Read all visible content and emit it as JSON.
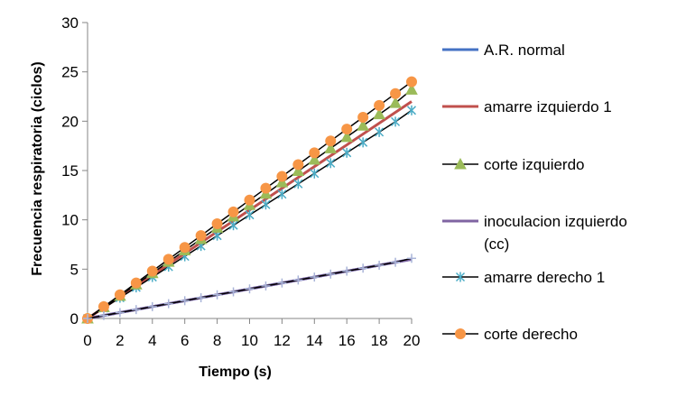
{
  "chart_data": {
    "type": "line",
    "xlabel": "Tiempo (s)",
    "ylabel": "Frecuencia respiratoria  (ciclos)",
    "xlim": [
      0,
      20
    ],
    "ylim": [
      0,
      30
    ],
    "xticks": [
      0,
      2,
      4,
      6,
      8,
      10,
      12,
      14,
      16,
      18,
      20
    ],
    "yticks": [
      0,
      5,
      10,
      15,
      20,
      25,
      30
    ],
    "grid": false,
    "legend_position": "right",
    "series": [
      {
        "name": "A.R. normal",
        "color": "#4472C4",
        "marker": "none",
        "x": [
          0,
          20
        ],
        "y": [
          0,
          6
        ]
      },
      {
        "name": "amarre izquierdo 1",
        "color": "#C0504D",
        "marker": "none",
        "x": [
          0,
          20
        ],
        "y": [
          0,
          22
        ]
      },
      {
        "name": "corte izquierdo",
        "color": "#000000",
        "marker": "triangle",
        "marker_color": "#9BBB59",
        "x": [
          0,
          1,
          2,
          3,
          4,
          5,
          6,
          7,
          8,
          9,
          10,
          11,
          12,
          13,
          14,
          15,
          16,
          17,
          18,
          19,
          20
        ],
        "y": [
          0,
          1.15,
          2.3,
          3.45,
          4.6,
          5.75,
          6.9,
          8.05,
          9.2,
          10.35,
          11.5,
          12.65,
          13.8,
          14.95,
          16.1,
          17.25,
          18.4,
          19.55,
          20.7,
          21.85,
          23.2
        ]
      },
      {
        "name": "inoculacion izquierdo (cc)",
        "color": "#8064A2",
        "marker": "none",
        "x": [
          0,
          20
        ],
        "y": [
          0,
          6
        ]
      },
      {
        "name": "amarre derecho 1",
        "color": "#000000",
        "marker": "star",
        "marker_color": "#4BACC6",
        "x": [
          0,
          1,
          2,
          3,
          4,
          5,
          6,
          7,
          8,
          9,
          10,
          11,
          12,
          13,
          14,
          15,
          16,
          17,
          18,
          19,
          20
        ],
        "y": [
          0,
          1.05,
          2.1,
          3.15,
          4.2,
          5.25,
          6.3,
          7.35,
          8.4,
          9.45,
          10.5,
          11.55,
          12.6,
          13.65,
          14.7,
          15.75,
          16.8,
          17.85,
          18.9,
          19.95,
          21.1
        ]
      },
      {
        "name": "corte derecho",
        "color": "#000000",
        "marker": "circle",
        "marker_color": "#F79646",
        "x": [
          0,
          1,
          2,
          3,
          4,
          5,
          6,
          7,
          8,
          9,
          10,
          11,
          12,
          13,
          14,
          15,
          16,
          17,
          18,
          19,
          20
        ],
        "y": [
          0,
          1.2,
          2.4,
          3.6,
          4.8,
          6.0,
          7.2,
          8.4,
          9.6,
          10.8,
          12.0,
          13.2,
          14.4,
          15.6,
          16.8,
          18.0,
          19.2,
          20.4,
          21.6,
          22.8,
          24.0
        ]
      },
      {
        "name": "",
        "color": "#000000",
        "marker": "cross",
        "marker_color": "#A9B4D8",
        "x": [
          0,
          1,
          2,
          3,
          4,
          5,
          6,
          7,
          8,
          9,
          10,
          11,
          12,
          13,
          14,
          15,
          16,
          17,
          18,
          19,
          20
        ],
        "y": [
          0,
          0.3,
          0.6,
          0.9,
          1.2,
          1.5,
          1.8,
          2.1,
          2.4,
          2.7,
          3.0,
          3.3,
          3.6,
          3.9,
          4.2,
          4.5,
          4.8,
          5.1,
          5.4,
          5.7,
          6.1
        ]
      }
    ]
  }
}
